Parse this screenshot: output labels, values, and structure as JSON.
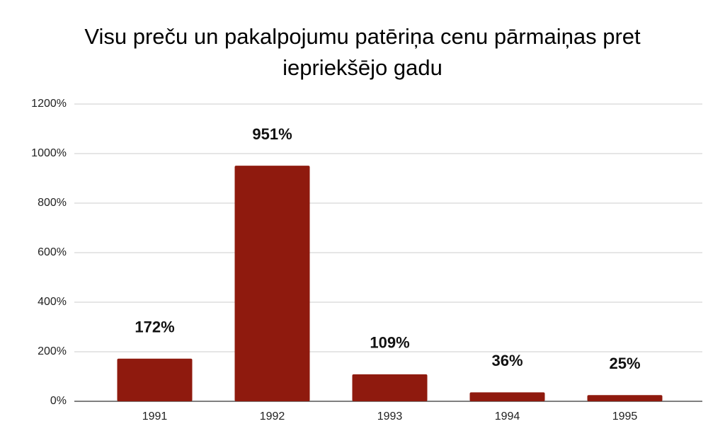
{
  "chart_data": {
    "type": "bar",
    "title": "Visu preču un pakalpojumu patēriņa cenu pārmaiņas pret iepriekšējo gadu",
    "categories": [
      "1991",
      "1992",
      "1993",
      "1994",
      "1995"
    ],
    "values": [
      172,
      951,
      109,
      36,
      25
    ],
    "value_labels": [
      "172%",
      "951%",
      "109%",
      "36%",
      "25%"
    ],
    "color": "#8f1a0e",
    "ylim": [
      0,
      1200
    ],
    "yticks": [
      {
        "value": 0,
        "label": "0%"
      },
      {
        "value": 200,
        "label": "200%"
      },
      {
        "value": 400,
        "label": "400%"
      },
      {
        "value": 600,
        "label": "600%"
      },
      {
        "value": 800,
        "label": "800%"
      },
      {
        "value": 1000,
        "label": "1000%"
      },
      {
        "value": 1200,
        "label": "1200%"
      }
    ],
    "grid": true
  }
}
